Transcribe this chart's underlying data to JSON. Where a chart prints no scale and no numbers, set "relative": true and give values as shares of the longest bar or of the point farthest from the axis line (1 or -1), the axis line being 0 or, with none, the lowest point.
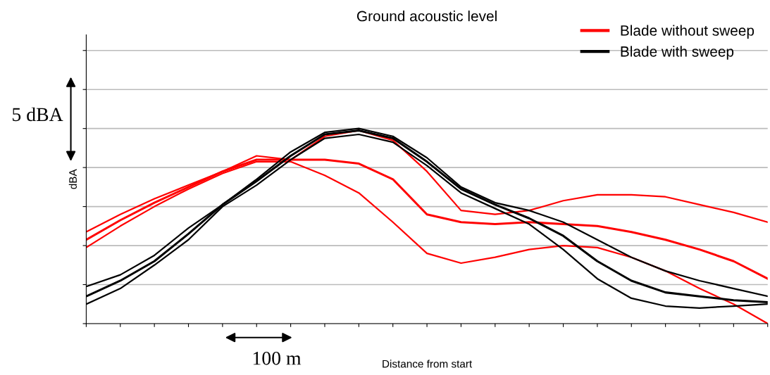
{
  "chart_data": {
    "type": "line",
    "title": "Ground acoustic level",
    "xlabel": "Distance from start",
    "ylabel": "dBA",
    "relative": true,
    "categories": [
      null,
      null,
      null,
      null,
      null,
      null,
      null,
      null,
      null,
      null,
      null,
      null,
      null,
      null,
      null,
      null,
      null,
      null,
      null,
      null,
      null
    ],
    "series": [
      {
        "name": "Blade without sweep",
        "color": "#ff0000",
        "values": [
          0.43,
          0.53,
          0.62,
          0.7,
          0.78,
          0.84,
          0.84,
          0.84,
          0.82,
          0.74,
          0.56,
          0.52,
          0.51,
          0.52,
          0.51,
          0.5,
          0.47,
          0.43,
          0.38,
          0.32,
          0.23
        ]
      },
      {
        "color": "#ff0000",
        "values": [
          0.39,
          0.5,
          0.6,
          0.69,
          0.77,
          0.83,
          0.83,
          0.76,
          0.67,
          0.52,
          0.36,
          0.31,
          0.34,
          0.38,
          0.4,
          0.39,
          0.34,
          0.27,
          0.18,
          0.1,
          0.0
        ]
      },
      {
        "color": "#ff0000",
        "values": [
          0.47,
          0.56,
          0.64,
          0.71,
          0.78,
          0.86,
          0.84,
          0.96,
          0.99,
          0.94,
          0.78,
          0.58,
          0.56,
          0.58,
          0.63,
          0.66,
          0.66,
          0.65,
          0.61,
          0.57,
          0.52
        ]
      },
      {
        "name": "Blade with sweep",
        "color": "#000000",
        "values": [
          0.14,
          0.22,
          0.32,
          0.46,
          0.61,
          0.73,
          0.86,
          0.97,
          0.99,
          0.95,
          0.83,
          0.69,
          0.61,
          0.54,
          0.45,
          0.32,
          0.22,
          0.16,
          0.14,
          0.12,
          0.11
        ]
      },
      {
        "color": "#000000",
        "values": [
          0.1,
          0.18,
          0.3,
          0.43,
          0.6,
          0.71,
          0.84,
          0.95,
          0.97,
          0.93,
          0.81,
          0.67,
          0.59,
          0.51,
          0.38,
          0.23,
          0.13,
          0.09,
          0.08,
          0.09,
          0.1
        ]
      },
      {
        "color": "#000000",
        "values": [
          0.19,
          0.25,
          0.35,
          0.49,
          0.61,
          0.74,
          0.88,
          0.98,
          1.0,
          0.96,
          0.85,
          0.7,
          0.62,
          0.58,
          0.52,
          0.43,
          0.34,
          0.27,
          0.22,
          0.18,
          0.14
        ]
      }
    ],
    "annotations": [
      "5 dBA",
      "100 m"
    ],
    "grid": "y",
    "legend": "top right",
    "marker": "none",
    "line_style": "solid"
  }
}
